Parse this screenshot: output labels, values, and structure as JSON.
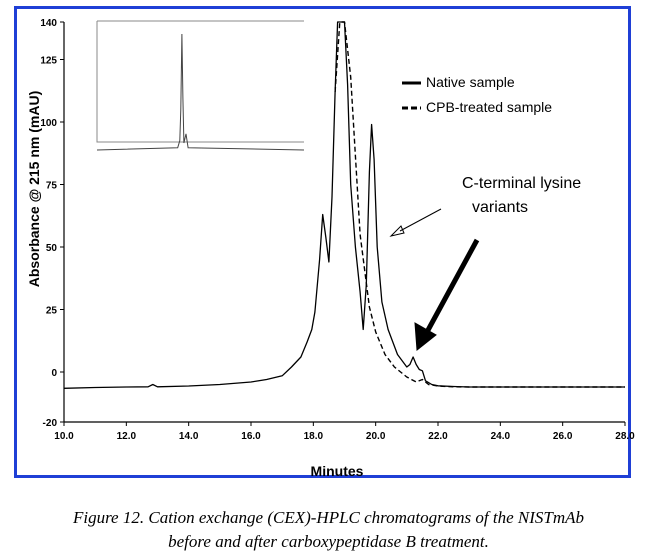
{
  "chart_data": {
    "type": "line",
    "title": "",
    "xlabel": "Minutes",
    "ylabel": "Absorbance @ 215 nm (mAU)",
    "xlim": [
      10.0,
      28.0
    ],
    "ylim": [
      -20,
      140
    ],
    "x_ticks": [
      "10.0",
      "12.0",
      "14.0",
      "16.0",
      "18.0",
      "20.0",
      "22.0",
      "24.0",
      "26.0",
      "28.0"
    ],
    "y_ticks": [
      "-20",
      "0",
      "25",
      "50",
      "75",
      "100",
      "125",
      "140"
    ],
    "series": [
      {
        "name": "Native sample",
        "style": "solid",
        "color": "#000000",
        "x": [
          10.0,
          11.0,
          12.0,
          12.7,
          12.85,
          13.0,
          14.0,
          15.0,
          16.0,
          16.5,
          17.0,
          17.3,
          17.6,
          17.8,
          17.95,
          18.05,
          18.2,
          18.3,
          18.4,
          18.5,
          18.6,
          18.7,
          18.78,
          18.85,
          19.0,
          19.1,
          19.2,
          19.35,
          19.5,
          19.6,
          19.7,
          19.8,
          19.87,
          19.95,
          20.05,
          20.2,
          20.4,
          20.7,
          21.0,
          21.1,
          21.2,
          21.3,
          21.4,
          21.5,
          21.6,
          21.8,
          22.0,
          22.5,
          23.0,
          24.0,
          26.0,
          28.0
        ],
        "y": [
          -6.5,
          -6.2,
          -6.0,
          -5.9,
          -5.0,
          -5.9,
          -5.6,
          -5.0,
          -4.0,
          -3.0,
          -1.5,
          2,
          6,
          12,
          17,
          24,
          45,
          63,
          54,
          44,
          70,
          112,
          140,
          140,
          140,
          115,
          75,
          50,
          32,
          17,
          35,
          80,
          99,
          85,
          50,
          28,
          17,
          7,
          2,
          3,
          6,
          3,
          1,
          0.5,
          -3.5,
          -5,
          -5.5,
          -5.8,
          -6.0,
          -6.0,
          -6.0,
          -6.0
        ]
      },
      {
        "name": "CPB-treated sample",
        "style": "dashed",
        "color": "#000000",
        "x": [
          18.7,
          18.85,
          19.0,
          19.2,
          19.5,
          19.8,
          20.0,
          20.3,
          20.6,
          21.0,
          21.3,
          21.5,
          21.7,
          22.0,
          22.5,
          23.0,
          24.0,
          28.0
        ],
        "y": [
          112,
          140,
          140,
          118,
          55,
          26,
          16,
          7,
          2,
          -2,
          -4,
          -3,
          -5,
          -5.6,
          -5.9,
          -6.0,
          -6.0,
          -6.0
        ]
      }
    ],
    "legend": {
      "position": "top-right",
      "entries": [
        "Native sample",
        "CPB-treated sample"
      ]
    },
    "annotations": [
      "C-terminal lysine",
      "variants"
    ],
    "inset": {
      "x": [
        0,
        0.39,
        0.4,
        0.405,
        0.41,
        0.415,
        0.42,
        0.43,
        0.44,
        1
      ],
      "y": [
        0,
        0.02,
        0.08,
        0.35,
        1.0,
        0.45,
        0.06,
        0.14,
        0.02,
        0
      ]
    }
  },
  "caption": {
    "line1": "Figure 12. Cation exchange (CEX)-HPLC chromatograms of the NISTmAb",
    "line2": "before and after carboxypeptidase B treatment."
  }
}
